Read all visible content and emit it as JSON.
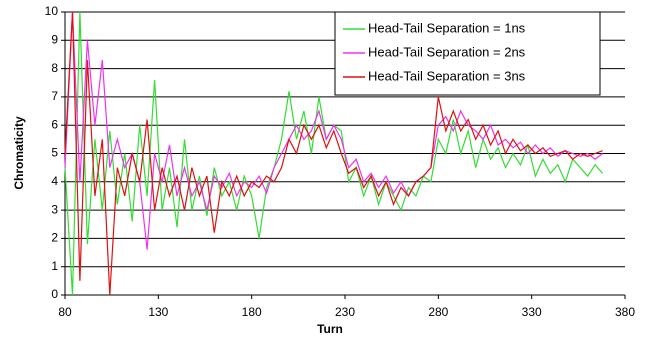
{
  "chart_data": {
    "type": "line",
    "xlabel": "Turn",
    "ylabel": "Chromaticity",
    "x": [
      80,
      84,
      88,
      92,
      96,
      100,
      104,
      108,
      112,
      116,
      120,
      124,
      128,
      132,
      136,
      140,
      144,
      148,
      152,
      156,
      160,
      164,
      168,
      172,
      176,
      180,
      184,
      188,
      192,
      196,
      200,
      204,
      208,
      212,
      216,
      220,
      224,
      228,
      232,
      236,
      240,
      244,
      248,
      252,
      256,
      260,
      264,
      268,
      272,
      276,
      280,
      284,
      288,
      292,
      296,
      300,
      304,
      308,
      312,
      316,
      320,
      324,
      328,
      332,
      336,
      340,
      344,
      348,
      352,
      356,
      360,
      364,
      368
    ],
    "series": [
      {
        "name": "Head-Tail Separation = 1ns",
        "color": "#33dd33",
        "values": [
          4.5,
          0,
          10,
          1.8,
          5.5,
          3,
          5.8,
          3.2,
          5,
          2.6,
          6,
          3.5,
          7.6,
          3,
          4.5,
          2.4,
          5.5,
          3,
          4.2,
          2.8,
          4.5,
          3.5,
          4,
          3,
          4.2,
          3.5,
          2,
          3.8,
          4.5,
          5.5,
          7.2,
          5.5,
          6.5,
          5,
          7,
          5.5,
          6,
          5.8,
          4,
          4.5,
          3.5,
          4.2,
          3.2,
          4,
          3.5,
          3,
          3.8,
          3.5,
          4.2,
          4,
          5.5,
          5,
          6.2,
          5,
          5.8,
          4.5,
          5.5,
          4.8,
          5.2,
          4.5,
          5,
          4.6,
          5.3,
          4.2,
          4.8,
          4.3,
          4.6,
          4,
          4.8,
          4.5,
          4.2,
          4.6,
          4.3
        ]
      },
      {
        "name": "Head-Tail Separation = 2ns",
        "color": "#ee33ee",
        "values": [
          4.5,
          10,
          4,
          9,
          6,
          8.3,
          4.5,
          5.5,
          4.5,
          5,
          4,
          1.6,
          5,
          4,
          5.3,
          3.5,
          4.5,
          3.5,
          4,
          3,
          4.2,
          3.8,
          4.3,
          3.5,
          4,
          3.8,
          4.2,
          3.6,
          4.5,
          5,
          5.5,
          6,
          5.5,
          5.8,
          6.5,
          5.5,
          6,
          5.5,
          4.5,
          4.8,
          4,
          4.3,
          3.8,
          4.2,
          3.6,
          4,
          3.5,
          4,
          4.2,
          4.5,
          6,
          6.3,
          5.8,
          6.5,
          6,
          5.8,
          5.5,
          6,
          5.3,
          5.5,
          5.2,
          5.4,
          5,
          5.3,
          5,
          5.2,
          4.9,
          5.1,
          5,
          4.9,
          5,
          4.8,
          5
        ]
      },
      {
        "name": "Head-Tail Separation = 3ns",
        "color": "#dd1111",
        "values": [
          5,
          10,
          0.5,
          8.3,
          3.5,
          5.5,
          0,
          4.5,
          3.5,
          5,
          4,
          6.2,
          3,
          4.5,
          3.5,
          4.2,
          3,
          4.5,
          3.5,
          4.2,
          2.2,
          4,
          3.5,
          4.2,
          3.5,
          4,
          3.8,
          4.2,
          4,
          4.5,
          5.5,
          5,
          6,
          5.5,
          6,
          5.2,
          5.8,
          5,
          4.3,
          4.5,
          3.8,
          4.2,
          3.5,
          4,
          3.2,
          3.8,
          3.5,
          4,
          4.2,
          4.5,
          7,
          5.8,
          6.5,
          5.8,
          6.2,
          5.5,
          6,
          5.3,
          5.8,
          5,
          5.5,
          5.1,
          5.3,
          5,
          5.2,
          4.9,
          5,
          5.1,
          4.8,
          5,
          4.9,
          5,
          5.1
        ]
      }
    ],
    "xlim": [
      80,
      380
    ],
    "xticks": [
      80,
      130,
      180,
      230,
      280,
      330,
      380
    ],
    "ylim": [
      0,
      10
    ],
    "yticks": [
      0,
      1,
      2,
      3,
      4,
      5,
      6,
      7,
      8,
      9,
      10
    ],
    "grid": true,
    "legend": "top-right"
  }
}
